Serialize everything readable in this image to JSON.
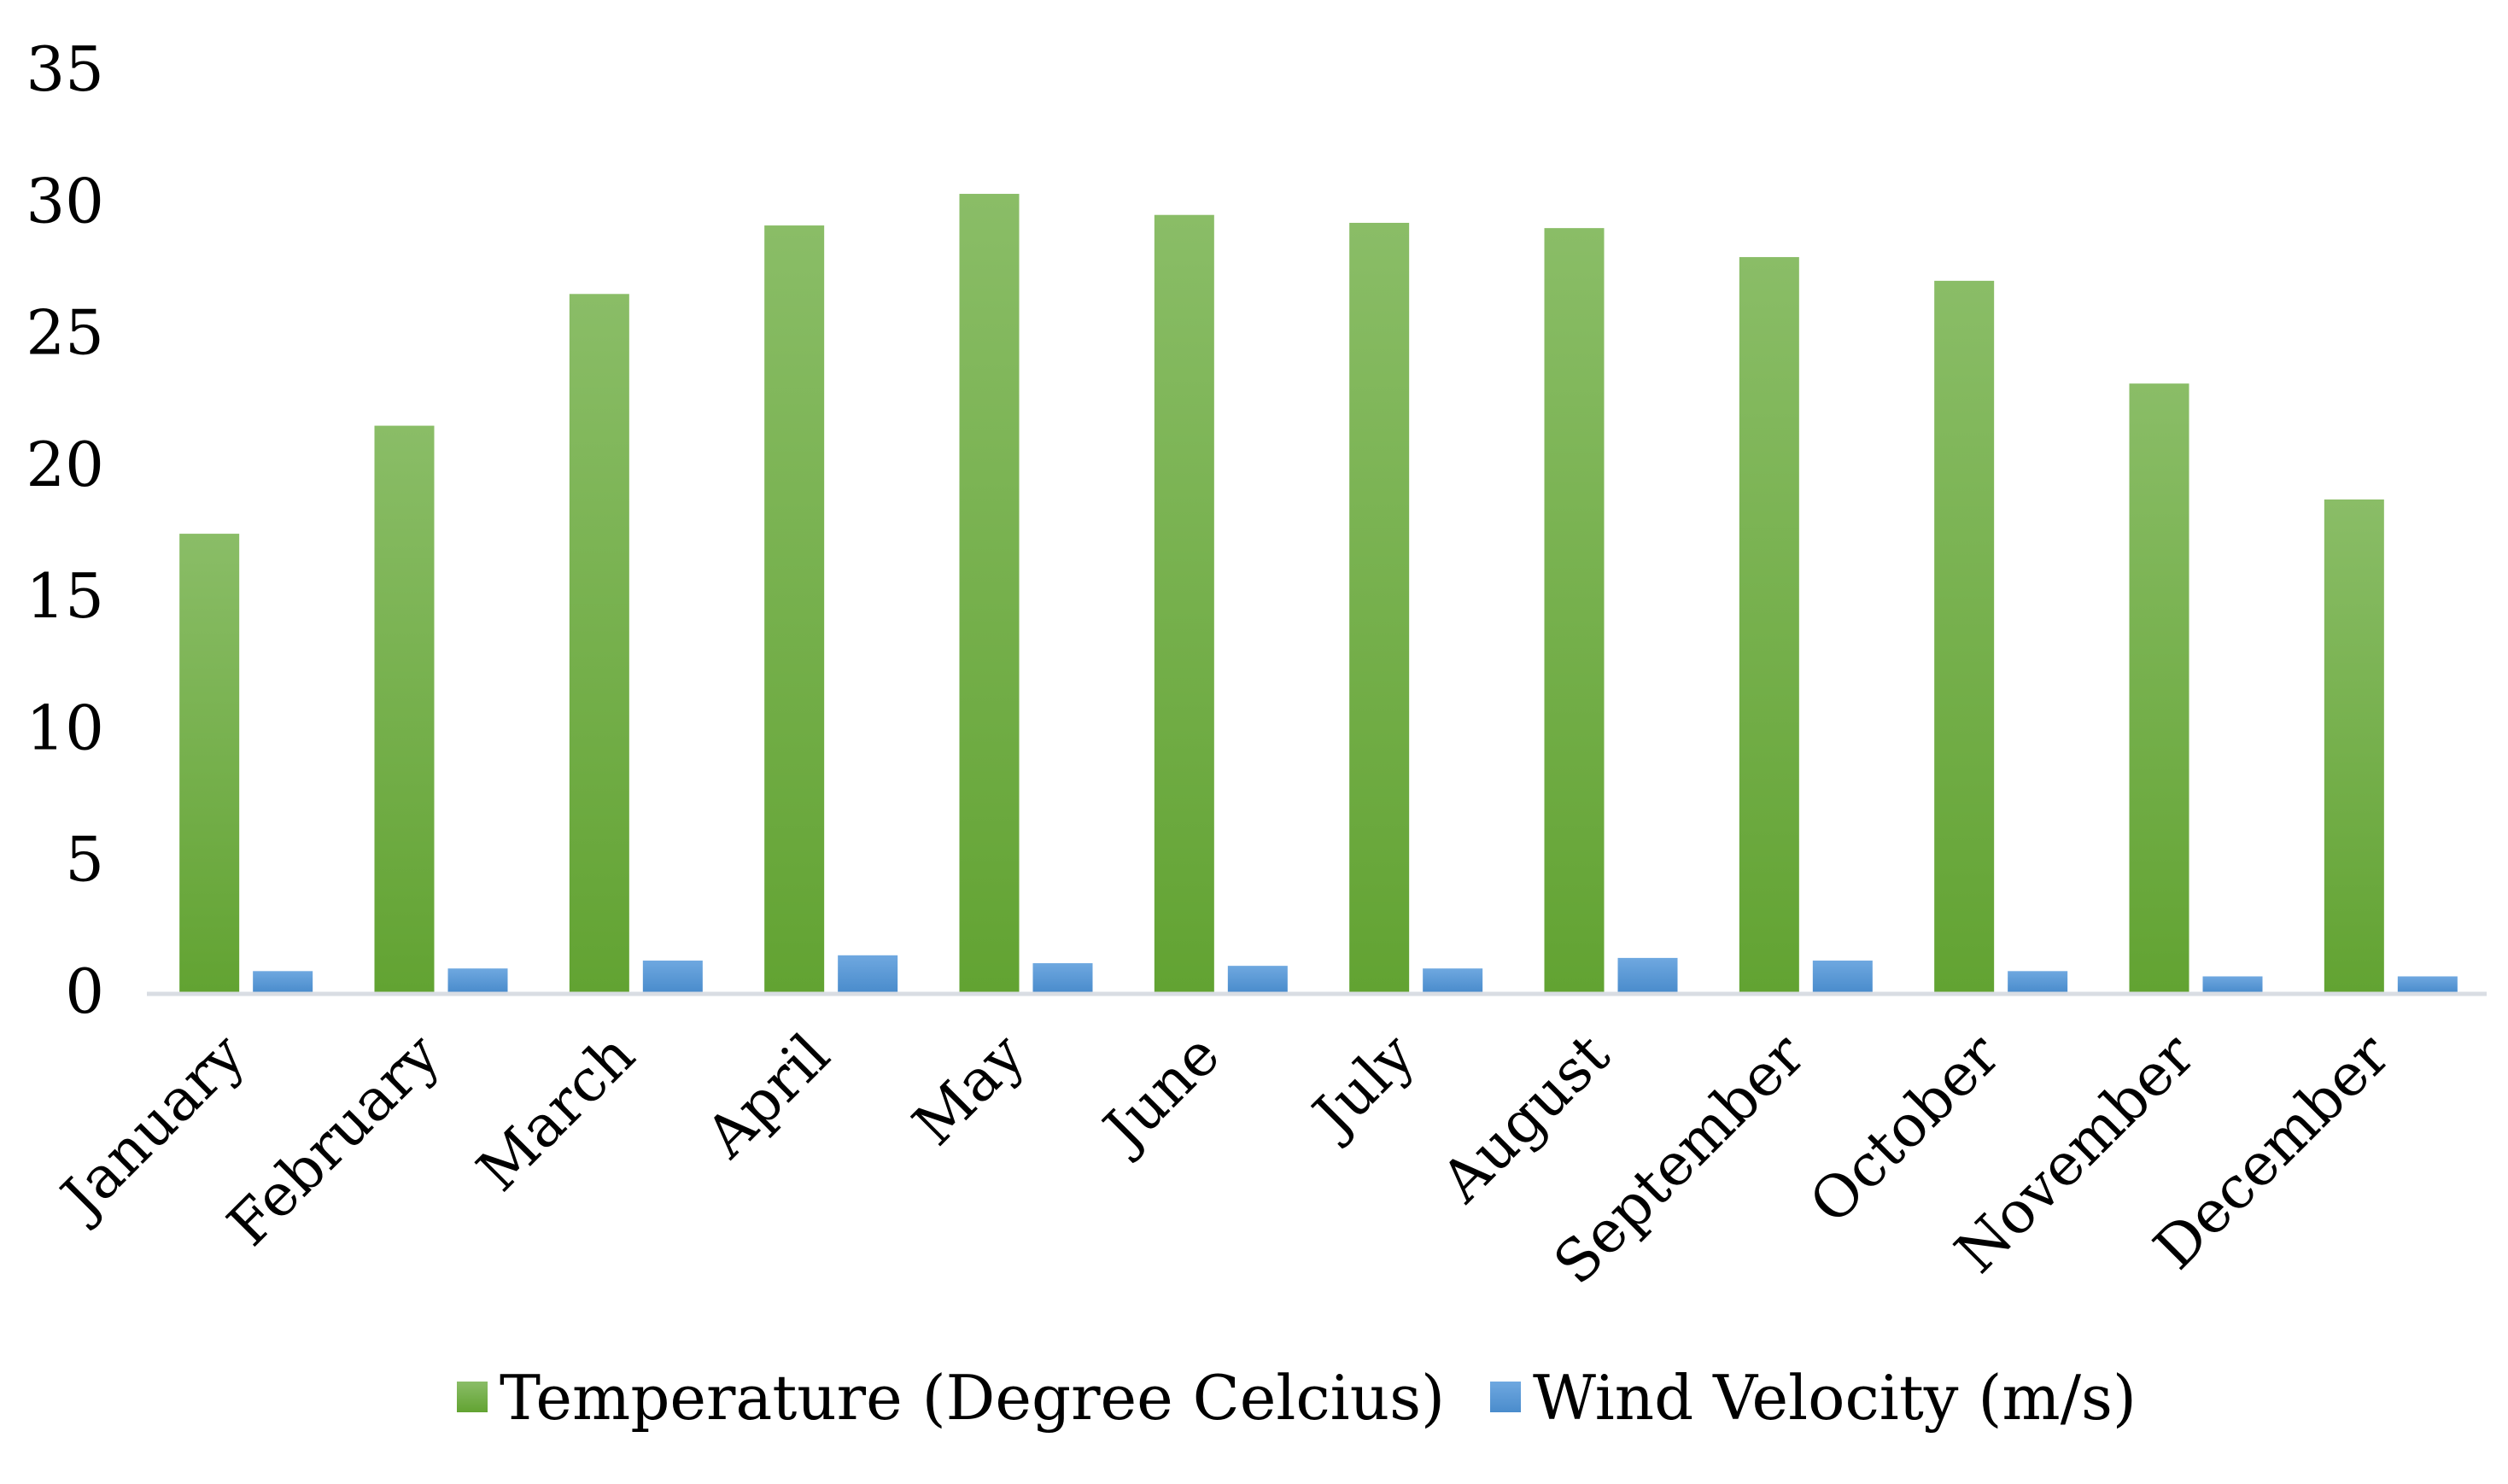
{
  "chart_data": {
    "type": "bar",
    "title": "",
    "xlabel": "",
    "ylabel": "",
    "ylim": [
      0,
      35
    ],
    "yticks": [
      "0",
      "5",
      "10",
      "15",
      "20",
      "25",
      "30",
      "35"
    ],
    "grid": false,
    "legend_position": "bottom",
    "categories": [
      "January",
      "February",
      "March",
      "April",
      "May",
      "June",
      "July",
      "August",
      "September",
      "October",
      "November",
      "December"
    ],
    "series": [
      {
        "name": "Temperature (Degree Celcius)",
        "color": "#70ad47",
        "color_light": "#8abd67",
        "values": [
          17.4,
          21.5,
          26.5,
          29.1,
          30.3,
          29.5,
          29.2,
          29.0,
          27.9,
          27.0,
          23.1,
          18.7
        ]
      },
      {
        "name": "Wind Velocity (m/s)",
        "color": "#5b9bd5",
        "color_light": "#6fa8e0",
        "values": [
          0.8,
          0.9,
          1.2,
          1.4,
          1.1,
          1.0,
          0.9,
          1.3,
          1.2,
          0.8,
          0.6,
          0.6
        ]
      }
    ]
  }
}
